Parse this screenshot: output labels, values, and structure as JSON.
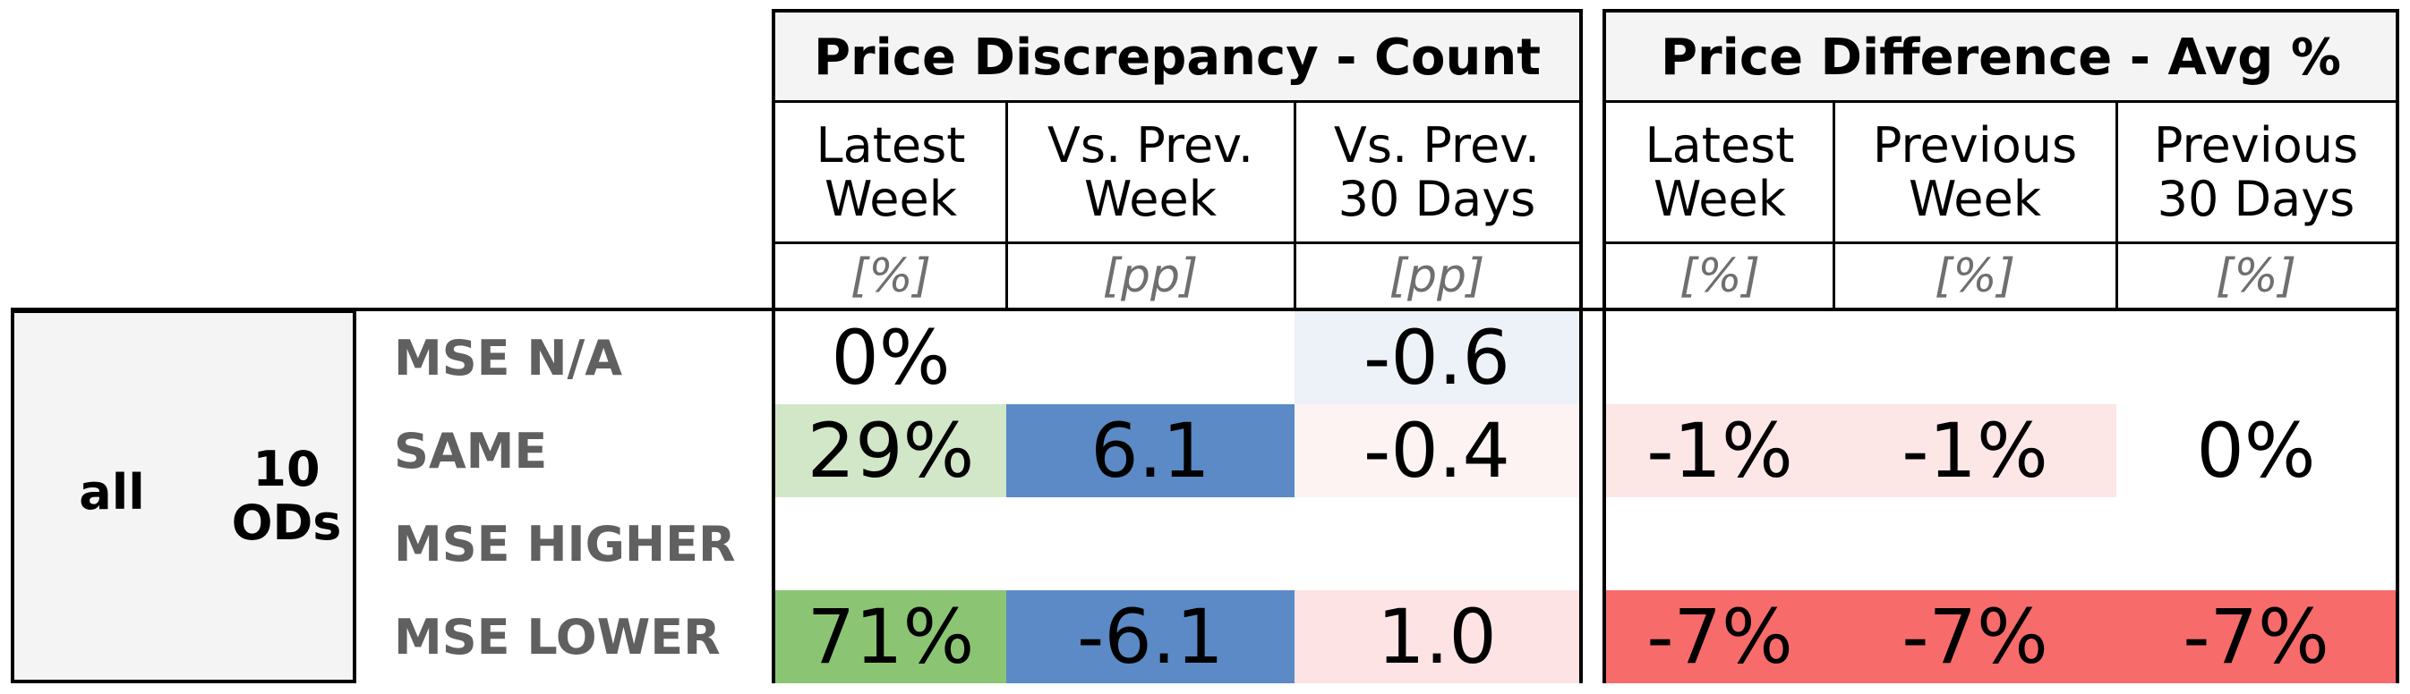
{
  "group_header": {
    "count_title": "Price Discrepancy - Count",
    "avg_title": "Price Difference - Avg %"
  },
  "columns": {
    "count": [
      {
        "label": "Latest\nWeek",
        "unit": "[%]"
      },
      {
        "label": "Vs. Prev.\nWeek",
        "unit": "[pp]"
      },
      {
        "label": "Vs. Prev.\n30 Days",
        "unit": "[pp]"
      }
    ],
    "avg": [
      {
        "label": "Latest\nWeek",
        "unit": "[%]"
      },
      {
        "label": "Previous\nWeek",
        "unit": "[%]"
      },
      {
        "label": "Previous\n30 Days",
        "unit": "[%]"
      }
    ]
  },
  "left": {
    "segment": "all",
    "ods": "10\nODs"
  },
  "rows": [
    {
      "label": "MSE N/A",
      "count": [
        {
          "v": "0%",
          "bg": "#ffffff"
        },
        {
          "v": "",
          "bg": "#ffffff"
        },
        {
          "v": "-0.6",
          "bg": "#edf2f9"
        }
      ],
      "avg": [
        {
          "v": "",
          "bg": "#ffffff"
        },
        {
          "v": "",
          "bg": "#ffffff"
        },
        {
          "v": "",
          "bg": "#ffffff"
        }
      ]
    },
    {
      "label": "SAME",
      "count": [
        {
          "v": "29%",
          "bg": "#d1e7c8"
        },
        {
          "v": "6.1",
          "bg": "#5b8ac6"
        },
        {
          "v": "-0.4",
          "bg": "#fdf3f3"
        }
      ],
      "avg": [
        {
          "v": "-1%",
          "bg": "#fde6e6"
        },
        {
          "v": "-1%",
          "bg": "#fde6e6"
        },
        {
          "v": "0%",
          "bg": "#ffffff"
        }
      ]
    },
    {
      "label": "MSE HIGHER",
      "count": [
        {
          "v": "",
          "bg": "#ffffff"
        },
        {
          "v": "",
          "bg": "#ffffff"
        },
        {
          "v": "",
          "bg": "#ffffff"
        }
      ],
      "avg": [
        {
          "v": "",
          "bg": "#ffffff"
        },
        {
          "v": "",
          "bg": "#ffffff"
        },
        {
          "v": "",
          "bg": "#ffffff"
        }
      ]
    },
    {
      "label": "MSE LOWER",
      "count": [
        {
          "v": "71%",
          "bg": "#8bc573"
        },
        {
          "v": "-6.1",
          "bg": "#5b8ac6"
        },
        {
          "v": "1.0",
          "bg": "#fde3e3"
        }
      ],
      "avg": [
        {
          "v": "-7%",
          "bg": "#f76b6b"
        },
        {
          "v": "-7%",
          "bg": "#f76b6b"
        },
        {
          "v": "-7%",
          "bg": "#f76b6b"
        }
      ]
    }
  ]
}
